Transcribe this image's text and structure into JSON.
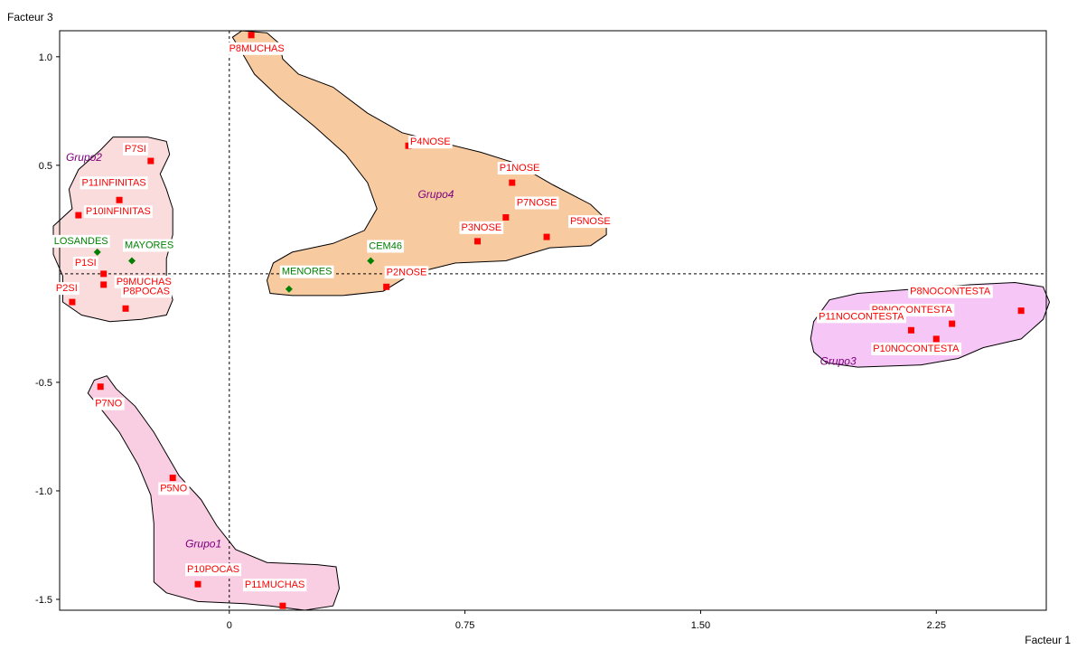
{
  "chart_data": {
    "type": "scatter",
    "xlabel": "Facteur 1",
    "ylabel": "Facteur 3",
    "xlim": [
      -0.54,
      2.6
    ],
    "ylim": [
      -1.55,
      1.12
    ],
    "xticks": [
      0,
      0.75,
      1.5,
      2.25
    ],
    "xtick_labels": [
      "0",
      "0.75",
      "1.50",
      "2.25"
    ],
    "yticks": [
      1.0,
      0.5,
      -0.5,
      -1.0,
      -1.5
    ],
    "ytick_labels": [
      "1.0",
      "0.5",
      "-0.5",
      "-1.0",
      "-1.5"
    ],
    "colors": {
      "active_point": "#ff0000",
      "supplementary_point": "#008000",
      "group_label": "#800080",
      "grupo1": "#f9cde2",
      "grupo2": "#fadcdc",
      "grupo3": "#f6c6f6",
      "grupo4": "#f8caa0"
    },
    "groups": [
      {
        "name": "Grupo1",
        "x": -0.14,
        "y": -1.26
      },
      {
        "name": "Grupo2",
        "x": -0.52,
        "y": 0.52
      },
      {
        "name": "Grupo3",
        "x": 1.88,
        "y": -0.42
      },
      {
        "name": "Grupo4",
        "x": 0.6,
        "y": 0.35
      }
    ],
    "series": [
      {
        "points": [
          {
            "label": "P8MUCHAS",
            "x": 0.07,
            "y": 1.1
          },
          {
            "label": "P7SI",
            "x": -0.25,
            "y": 0.52
          },
          {
            "label": "P11INFINITAS",
            "x": -0.35,
            "y": 0.34
          },
          {
            "label": "P10INFINITAS",
            "x": -0.48,
            "y": 0.27
          },
          {
            "label": "P1SI",
            "x": -0.4,
            "y": 0.0
          },
          {
            "label": "P9MUCHAS",
            "x": -0.4,
            "y": -0.05
          },
          {
            "label": "P8POCAS",
            "x": -0.33,
            "y": -0.16
          },
          {
            "label": "P2SI",
            "x": -0.5,
            "y": -0.13
          },
          {
            "label": "P4NOSE",
            "x": 0.57,
            "y": 0.59
          },
          {
            "label": "P1NOSE",
            "x": 0.9,
            "y": 0.42
          },
          {
            "label": "P7NOSE",
            "x": 0.88,
            "y": 0.26
          },
          {
            "label": "P3NOSE",
            "x": 0.79,
            "y": 0.15
          },
          {
            "label": "P5NOSE",
            "x": 1.01,
            "y": 0.17
          },
          {
            "label": "P2NOSE",
            "x": 0.5,
            "y": -0.06
          },
          {
            "label": "P8NOCONTESTA",
            "x": 2.52,
            "y": -0.17
          },
          {
            "label": "P9NOCONTESTA",
            "x": 2.3,
            "y": -0.23
          },
          {
            "label": "P11NOCONTESTA",
            "x": 2.17,
            "y": -0.26
          },
          {
            "label": "P10NOCONTESTA",
            "x": 2.25,
            "y": -0.3
          },
          {
            "label": "P7NO",
            "x": -0.41,
            "y": -0.52
          },
          {
            "label": "P5NO",
            "x": -0.18,
            "y": -0.94
          },
          {
            "label": "P10POCAS",
            "x": -0.1,
            "y": -1.43
          },
          {
            "label": "P11MUCHAS",
            "x": 0.17,
            "y": -1.53
          }
        ]
      },
      {
        "points": [
          {
            "label": "LOSANDES",
            "x": -0.42,
            "y": 0.1
          },
          {
            "label": "MAYORES",
            "x": -0.31,
            "y": 0.06
          },
          {
            "label": "CEM46",
            "x": 0.45,
            "y": 0.06
          },
          {
            "label": "MENORES",
            "x": 0.19,
            "y": -0.07
          }
        ]
      }
    ]
  }
}
